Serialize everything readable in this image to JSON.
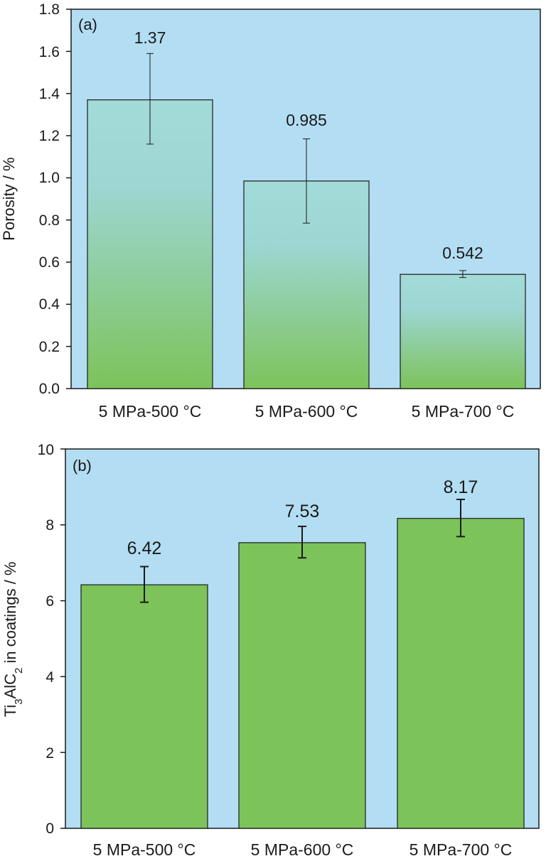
{
  "colors": {
    "plot_background": "#b3ddf2",
    "bar_green": "#7cc35a",
    "bar_gradient_top": "#a3dbd8",
    "axis": "#1a1a1a"
  },
  "chart_data": [
    {
      "type": "bar",
      "panel_label": "(a)",
      "ylabel": "Porosity / %",
      "categories": [
        "5 MPa-500 °C",
        "5 MPa-600 °C",
        "5 MPa-700 °C"
      ],
      "values": [
        1.37,
        0.985,
        0.542
      ],
      "value_labels": [
        "1.37",
        "0.985",
        "0.542"
      ],
      "error_bars": [
        [
          1.16,
          1.59
        ],
        [
          0.785,
          1.185
        ],
        [
          0.527,
          0.56
        ]
      ],
      "ylim": [
        0,
        1.8
      ],
      "yticks": [
        "0.0",
        "0.2",
        "0.4",
        "0.6",
        "0.8",
        "1.0",
        "1.2",
        "1.4",
        "1.6",
        "1.8"
      ],
      "bar_fill": "gradient",
      "grid": false
    },
    {
      "type": "bar",
      "panel_label": "(b)",
      "ylabel": "Ti3AlC2 in coatings / %",
      "categories": [
        "5 MPa-500 °C",
        "5 MPa-600 °C",
        "5 MPa-700 °C"
      ],
      "values": [
        6.42,
        7.53,
        8.17
      ],
      "value_labels": [
        "6.42",
        "7.53",
        "8.17"
      ],
      "error_bars": [
        [
          5.96,
          6.9
        ],
        [
          7.13,
          7.96
        ],
        [
          7.69,
          8.67
        ]
      ],
      "ylim": [
        0,
        10
      ],
      "yticks": [
        "0",
        "2",
        "4",
        "6",
        "8",
        "10"
      ],
      "bar_fill": "solid",
      "grid": false
    }
  ]
}
